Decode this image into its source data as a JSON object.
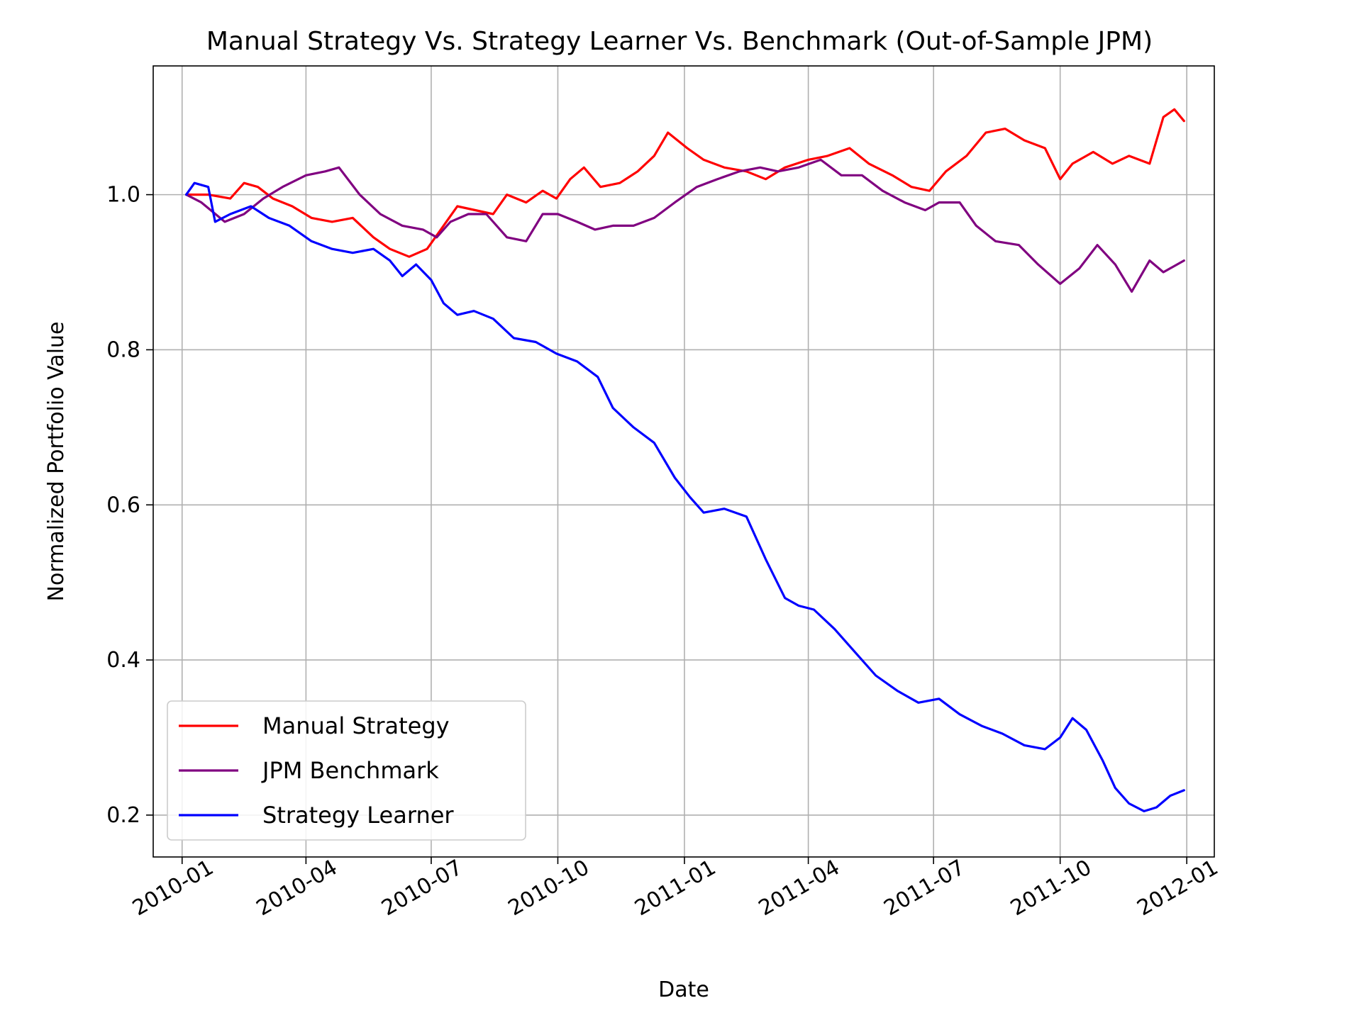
{
  "chart_data": {
    "type": "line",
    "title": "Manual Strategy Vs. Strategy Learner Vs. Benchmark (Out-of-Sample JPM)",
    "xlabel": "Date",
    "ylabel": "Normalized Portfolio Value",
    "x_tick_labels": [
      "2010-01",
      "2010-04",
      "2010-07",
      "2010-10",
      "2011-01",
      "2011-04",
      "2011-07",
      "2011-10",
      "2012-01"
    ],
    "x_tick_dates": [
      "2010-01-01",
      "2010-04-01",
      "2010-07-01",
      "2010-10-01",
      "2011-01-01",
      "2011-04-01",
      "2011-07-01",
      "2011-10-01",
      "2012-01-01"
    ],
    "y_tick_labels": [
      "0.2",
      "0.4",
      "0.6",
      "0.8",
      "1.0"
    ],
    "y_tick_values": [
      0.2,
      0.4,
      0.6,
      0.8,
      1.0
    ],
    "xlim": [
      "2009-12-11",
      "2012-01-21"
    ],
    "ylim": [
      0.146,
      1.166
    ],
    "grid": true,
    "legend_position": "lower-left",
    "series": [
      {
        "name": "Manual Strategy",
        "color": "#ff0000",
        "points": [
          [
            "2010-01-04",
            1.0
          ],
          [
            "2010-01-20",
            1.0
          ],
          [
            "2010-02-05",
            0.995
          ],
          [
            "2010-02-15",
            1.015
          ],
          [
            "2010-02-25",
            1.01
          ],
          [
            "2010-03-08",
            0.995
          ],
          [
            "2010-03-22",
            0.985
          ],
          [
            "2010-04-05",
            0.97
          ],
          [
            "2010-04-20",
            0.965
          ],
          [
            "2010-05-05",
            0.97
          ],
          [
            "2010-05-20",
            0.945
          ],
          [
            "2010-06-01",
            0.93
          ],
          [
            "2010-06-15",
            0.92
          ],
          [
            "2010-06-28",
            0.93
          ],
          [
            "2010-07-08",
            0.955
          ],
          [
            "2010-07-20",
            0.985
          ],
          [
            "2010-08-02",
            0.98
          ],
          [
            "2010-08-15",
            0.975
          ],
          [
            "2010-08-25",
            1.0
          ],
          [
            "2010-09-08",
            0.99
          ],
          [
            "2010-09-20",
            1.005
          ],
          [
            "2010-09-30",
            0.995
          ],
          [
            "2010-10-10",
            1.02
          ],
          [
            "2010-10-20",
            1.035
          ],
          [
            "2010-11-01",
            1.01
          ],
          [
            "2010-11-15",
            1.015
          ],
          [
            "2010-11-28",
            1.03
          ],
          [
            "2010-12-10",
            1.05
          ],
          [
            "2010-12-20",
            1.08
          ],
          [
            "2011-01-03",
            1.06
          ],
          [
            "2011-01-15",
            1.045
          ],
          [
            "2011-01-30",
            1.035
          ],
          [
            "2011-02-15",
            1.03
          ],
          [
            "2011-03-01",
            1.02
          ],
          [
            "2011-03-15",
            1.035
          ],
          [
            "2011-04-01",
            1.045
          ],
          [
            "2011-04-15",
            1.05
          ],
          [
            "2011-05-01",
            1.06
          ],
          [
            "2011-05-15",
            1.04
          ],
          [
            "2011-06-01",
            1.025
          ],
          [
            "2011-06-15",
            1.01
          ],
          [
            "2011-06-28",
            1.005
          ],
          [
            "2011-07-10",
            1.03
          ],
          [
            "2011-07-25",
            1.05
          ],
          [
            "2011-08-08",
            1.08
          ],
          [
            "2011-08-22",
            1.085
          ],
          [
            "2011-09-05",
            1.07
          ],
          [
            "2011-09-20",
            1.06
          ],
          [
            "2011-10-01",
            1.02
          ],
          [
            "2011-10-10",
            1.04
          ],
          [
            "2011-10-25",
            1.055
          ],
          [
            "2011-11-08",
            1.04
          ],
          [
            "2011-11-20",
            1.05
          ],
          [
            "2011-12-05",
            1.04
          ],
          [
            "2011-12-15",
            1.1
          ],
          [
            "2011-12-23",
            1.11
          ],
          [
            "2011-12-30",
            1.095
          ]
        ]
      },
      {
        "name": "JPM Benchmark",
        "color": "#800080",
        "points": [
          [
            "2010-01-04",
            1.0
          ],
          [
            "2010-01-15",
            0.99
          ],
          [
            "2010-02-01",
            0.965
          ],
          [
            "2010-02-15",
            0.975
          ],
          [
            "2010-03-01",
            0.995
          ],
          [
            "2010-03-15",
            1.01
          ],
          [
            "2010-04-01",
            1.025
          ],
          [
            "2010-04-15",
            1.03
          ],
          [
            "2010-04-25",
            1.035
          ],
          [
            "2010-05-10",
            1.0
          ],
          [
            "2010-05-25",
            0.975
          ],
          [
            "2010-06-10",
            0.96
          ],
          [
            "2010-06-25",
            0.955
          ],
          [
            "2010-07-05",
            0.945
          ],
          [
            "2010-07-15",
            0.965
          ],
          [
            "2010-07-28",
            0.975
          ],
          [
            "2010-08-10",
            0.975
          ],
          [
            "2010-08-25",
            0.945
          ],
          [
            "2010-09-08",
            0.94
          ],
          [
            "2010-09-20",
            0.975
          ],
          [
            "2010-10-01",
            0.975
          ],
          [
            "2010-10-15",
            0.965
          ],
          [
            "2010-10-28",
            0.955
          ],
          [
            "2010-11-10",
            0.96
          ],
          [
            "2010-11-25",
            0.96
          ],
          [
            "2010-12-10",
            0.97
          ],
          [
            "2010-12-25",
            0.99
          ],
          [
            "2011-01-10",
            1.01
          ],
          [
            "2011-01-25",
            1.02
          ],
          [
            "2011-02-10",
            1.03
          ],
          [
            "2011-02-25",
            1.035
          ],
          [
            "2011-03-10",
            1.03
          ],
          [
            "2011-03-25",
            1.035
          ],
          [
            "2011-04-10",
            1.045
          ],
          [
            "2011-04-25",
            1.025
          ],
          [
            "2011-05-10",
            1.025
          ],
          [
            "2011-05-25",
            1.005
          ],
          [
            "2011-06-10",
            0.99
          ],
          [
            "2011-06-25",
            0.98
          ],
          [
            "2011-07-05",
            0.99
          ],
          [
            "2011-07-20",
            0.99
          ],
          [
            "2011-08-01",
            0.96
          ],
          [
            "2011-08-15",
            0.94
          ],
          [
            "2011-09-01",
            0.935
          ],
          [
            "2011-09-15",
            0.91
          ],
          [
            "2011-10-01",
            0.885
          ],
          [
            "2011-10-15",
            0.905
          ],
          [
            "2011-10-28",
            0.935
          ],
          [
            "2011-11-10",
            0.91
          ],
          [
            "2011-11-22",
            0.875
          ],
          [
            "2011-12-05",
            0.915
          ],
          [
            "2011-12-15",
            0.9
          ],
          [
            "2011-12-30",
            0.915
          ]
        ]
      },
      {
        "name": "Strategy Learner",
        "color": "#0000ff",
        "points": [
          [
            "2010-01-04",
            1.0
          ],
          [
            "2010-01-10",
            1.015
          ],
          [
            "2010-01-20",
            1.01
          ],
          [
            "2010-01-25",
            0.965
          ],
          [
            "2010-02-05",
            0.975
          ],
          [
            "2010-02-20",
            0.985
          ],
          [
            "2010-03-05",
            0.97
          ],
          [
            "2010-03-20",
            0.96
          ],
          [
            "2010-04-05",
            0.94
          ],
          [
            "2010-04-20",
            0.93
          ],
          [
            "2010-05-05",
            0.925
          ],
          [
            "2010-05-20",
            0.93
          ],
          [
            "2010-06-01",
            0.915
          ],
          [
            "2010-06-10",
            0.895
          ],
          [
            "2010-06-20",
            0.91
          ],
          [
            "2010-07-01",
            0.89
          ],
          [
            "2010-07-10",
            0.86
          ],
          [
            "2010-07-20",
            0.845
          ],
          [
            "2010-08-01",
            0.85
          ],
          [
            "2010-08-15",
            0.84
          ],
          [
            "2010-08-30",
            0.815
          ],
          [
            "2010-09-15",
            0.81
          ],
          [
            "2010-09-30",
            0.795
          ],
          [
            "2010-10-15",
            0.785
          ],
          [
            "2010-10-30",
            0.765
          ],
          [
            "2010-11-10",
            0.725
          ],
          [
            "2010-11-25",
            0.7
          ],
          [
            "2010-12-10",
            0.68
          ],
          [
            "2010-12-25",
            0.635
          ],
          [
            "2011-01-05",
            0.61
          ],
          [
            "2011-01-15",
            0.59
          ],
          [
            "2011-01-30",
            0.595
          ],
          [
            "2011-02-15",
            0.585
          ],
          [
            "2011-03-01",
            0.53
          ],
          [
            "2011-03-15",
            0.48
          ],
          [
            "2011-03-25",
            0.47
          ],
          [
            "2011-04-05",
            0.465
          ],
          [
            "2011-04-20",
            0.44
          ],
          [
            "2011-05-05",
            0.41
          ],
          [
            "2011-05-20",
            0.38
          ],
          [
            "2011-06-05",
            0.36
          ],
          [
            "2011-06-20",
            0.345
          ],
          [
            "2011-07-05",
            0.35
          ],
          [
            "2011-07-20",
            0.33
          ],
          [
            "2011-08-05",
            0.315
          ],
          [
            "2011-08-20",
            0.305
          ],
          [
            "2011-09-05",
            0.29
          ],
          [
            "2011-09-20",
            0.285
          ],
          [
            "2011-10-01",
            0.3
          ],
          [
            "2011-10-10",
            0.325
          ],
          [
            "2011-10-20",
            0.31
          ],
          [
            "2011-11-01",
            0.27
          ],
          [
            "2011-11-10",
            0.235
          ],
          [
            "2011-11-20",
            0.215
          ],
          [
            "2011-12-01",
            0.205
          ],
          [
            "2011-12-10",
            0.21
          ],
          [
            "2011-12-20",
            0.225
          ],
          [
            "2011-12-30",
            0.232
          ]
        ]
      }
    ]
  }
}
